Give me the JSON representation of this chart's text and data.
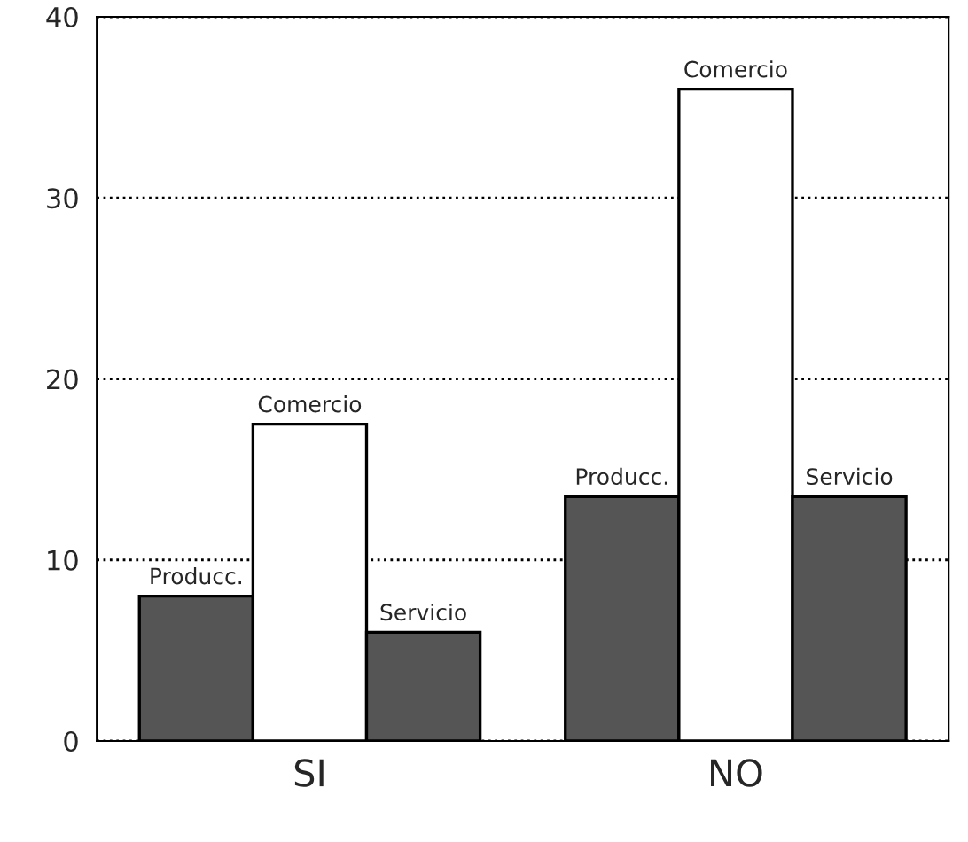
{
  "chart_data": {
    "type": "bar",
    "categories": [
      "SI",
      "NO"
    ],
    "series": [
      {
        "name": "Producc.",
        "color": "#555555",
        "values": [
          8,
          13.5
        ]
      },
      {
        "name": "Comercio",
        "color": "#ffffff",
        "values": [
          17.5,
          36
        ]
      },
      {
        "name": "Servicio",
        "color": "#555555",
        "values": [
          6,
          13.5
        ]
      }
    ],
    "ylim": [
      0,
      40
    ],
    "yticks": [
      0,
      10,
      20,
      30,
      40
    ],
    "grid": "y"
  }
}
